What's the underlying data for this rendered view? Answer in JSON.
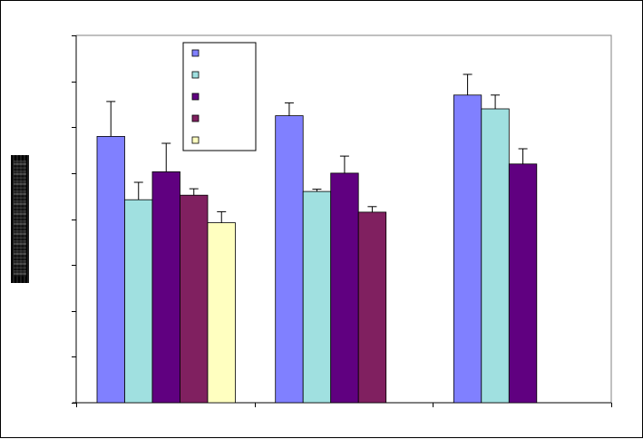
{
  "chart_data": {
    "type": "bar",
    "title": "",
    "xlabel": "",
    "ylabel": "",
    "categories": [
      "",
      "",
      ""
    ],
    "ylim": [
      0,
      8
    ],
    "grid": false,
    "legend_position": "top-center",
    "series_colors": [
      "#8080ff",
      "#a0e0e0",
      "#600080",
      "#802060",
      "#ffffc0"
    ],
    "series": [
      {
        "values": [
          5.8,
          6.25,
          6.7
        ],
        "errors": [
          0.76,
          0.28,
          0.45
        ]
      },
      {
        "values": [
          4.42,
          4.6,
          6.4
        ],
        "errors": [
          0.38,
          0.05,
          0.3
        ]
      },
      {
        "values": [
          5.03,
          5.0,
          5.2
        ],
        "errors": [
          0.62,
          0.37,
          0.33
        ]
      },
      {
        "values": [
          4.52,
          4.15,
          null
        ],
        "errors": [
          0.14,
          0.12,
          null
        ]
      },
      {
        "values": [
          3.92,
          null,
          null
        ],
        "errors": [
          0.24,
          null,
          null
        ]
      }
    ]
  }
}
